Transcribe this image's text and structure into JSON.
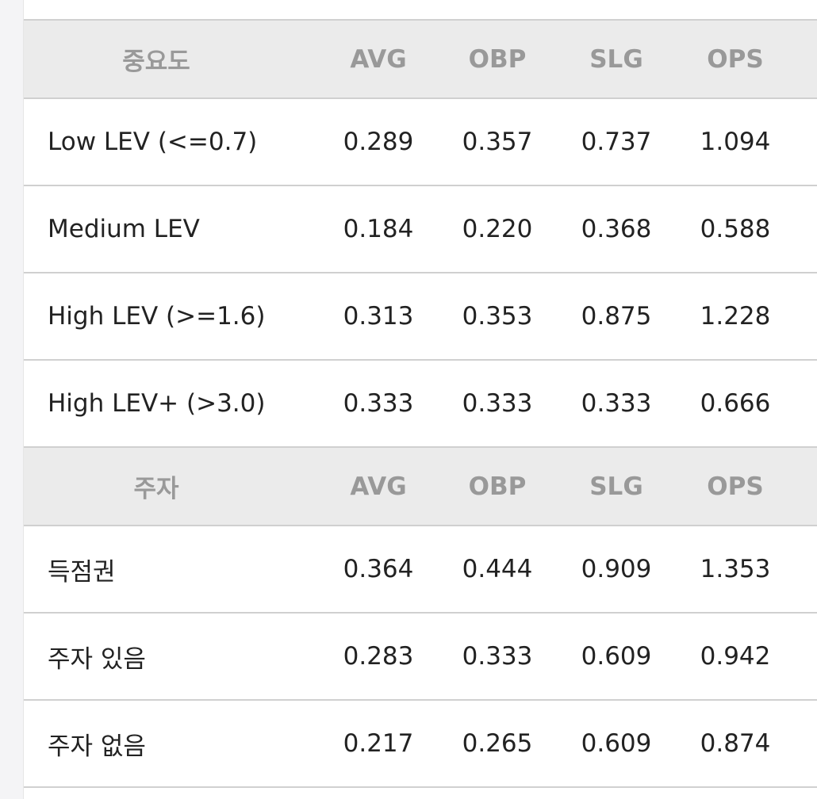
{
  "sections": [
    {
      "header": [
        "중요도",
        "AVG",
        "OBP",
        "SLG",
        "OPS"
      ],
      "rows": [
        [
          "Low LEV (<=0.7)",
          "0.289",
          "0.357",
          "0.737",
          "1.094"
        ],
        [
          "Medium LEV",
          "0.184",
          "0.220",
          "0.368",
          "0.588"
        ],
        [
          "High LEV (>=1.6)",
          "0.313",
          "0.353",
          "0.875",
          "1.228"
        ],
        [
          "High LEV+ (>3.0)",
          "0.333",
          "0.333",
          "0.333",
          "0.666"
        ]
      ]
    },
    {
      "header": [
        "주자",
        "AVG",
        "OBP",
        "SLG",
        "OPS"
      ],
      "rows": [
        [
          "득점권",
          "0.364",
          "0.444",
          "0.909",
          "1.353"
        ],
        [
          "주자 있음",
          "0.283",
          "0.333",
          "0.609",
          "0.942"
        ],
        [
          "주자 없음",
          "0.217",
          "0.265",
          "0.609",
          "0.874"
        ]
      ]
    }
  ]
}
